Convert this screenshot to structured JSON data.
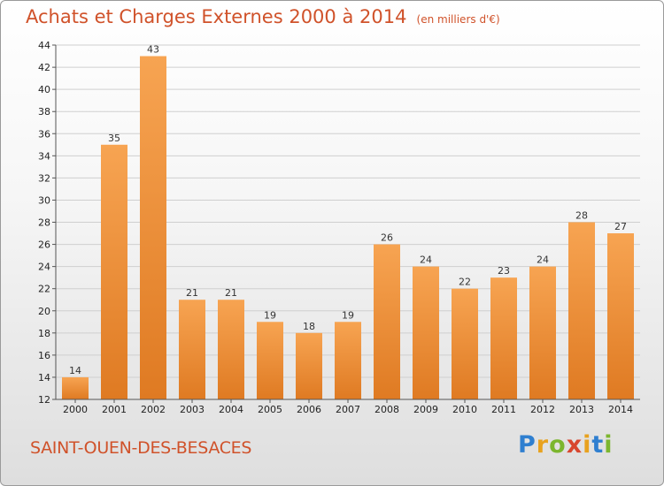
{
  "colors": {
    "title": "#d0522a",
    "bar_top": "#f7a452",
    "bar_bottom": "#df7a22",
    "grid": "#cfcfcf"
  },
  "chart_data": {
    "type": "bar",
    "title": "Achats et Charges Externes 2000 à 2014",
    "subtitle": "(en milliers d'€)",
    "categories": [
      "2000",
      "2001",
      "2002",
      "2003",
      "2004",
      "2005",
      "2006",
      "2007",
      "2008",
      "2009",
      "2010",
      "2011",
      "2012",
      "2013",
      "2014"
    ],
    "values": [
      14,
      35,
      43,
      21,
      21,
      19,
      18,
      19,
      26,
      24,
      22,
      23,
      24,
      28,
      27
    ],
    "data_labels": [
      "14",
      "35",
      "43",
      "21",
      "21",
      "19",
      "18",
      "19",
      "26",
      "24",
      "22",
      "23",
      "24",
      "28",
      "27"
    ],
    "ylim": [
      12,
      44
    ],
    "yticks": [
      12,
      14,
      16,
      18,
      20,
      22,
      24,
      26,
      28,
      30,
      32,
      34,
      36,
      38,
      40,
      42,
      44
    ],
    "ytick_labels": [
      "12",
      "14",
      "16",
      "18",
      "20",
      "22",
      "24",
      "26",
      "28",
      "30",
      "32",
      "34",
      "36",
      "38",
      "40",
      "42",
      "44"
    ],
    "grid": true,
    "xlabel": "",
    "ylabel": ""
  },
  "footer": {
    "city": "SAINT-OUEN-DES-BESACES"
  },
  "logo": {
    "text": "Proxiti",
    "letters": [
      "P",
      "r",
      "o",
      "x",
      "i",
      "t",
      "i"
    ],
    "letter_colors": [
      "#2f7fd0",
      "#e8a21f",
      "#7cb62e",
      "#d8462e",
      "#e8a21f",
      "#2f7fd0",
      "#7cb62e"
    ]
  }
}
